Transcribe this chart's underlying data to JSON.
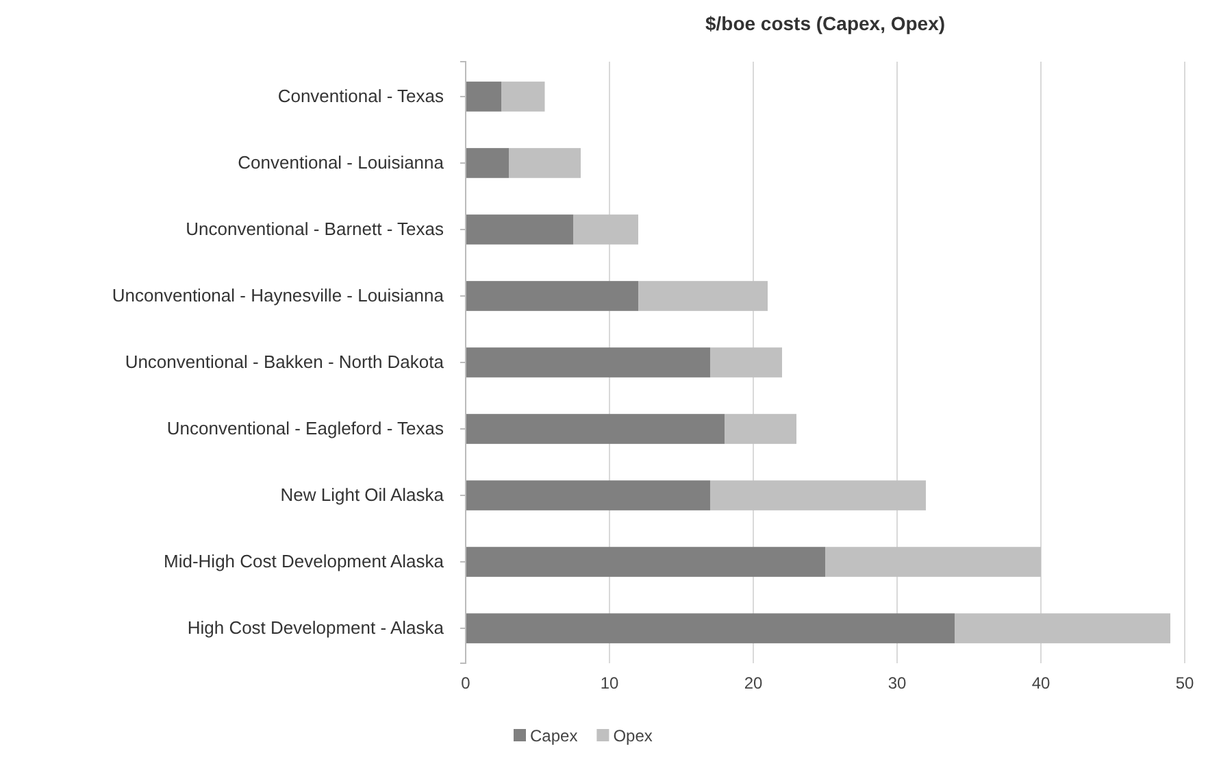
{
  "chart_data": {
    "type": "bar",
    "orientation": "horizontal",
    "stacked": true,
    "title": "$/boe costs (Capex, Opex)",
    "categories": [
      "Conventional - Texas",
      "Conventional - Louisianna",
      "Unconventional - Barnett - Texas",
      "Unconventional - Haynesville - Louisianna",
      "Unconventional - Bakken - North Dakota",
      "Unconventional - Eagleford - Texas",
      "New Light Oil Alaska",
      "Mid-High Cost Development Alaska",
      "High Cost Development - Alaska"
    ],
    "series": [
      {
        "name": "Capex",
        "color": "#808080",
        "values": [
          2.5,
          3,
          7.5,
          12,
          17,
          18,
          17,
          25,
          34
        ]
      },
      {
        "name": "Opex",
        "color": "#c0c0c0",
        "values": [
          3,
          5,
          4.5,
          9,
          5,
          5,
          15,
          15,
          15
        ]
      }
    ],
    "xlim": [
      0,
      50
    ],
    "xticks": [
      0,
      10,
      20,
      30,
      40,
      50
    ],
    "grid": "x",
    "legend": "bottom"
  }
}
